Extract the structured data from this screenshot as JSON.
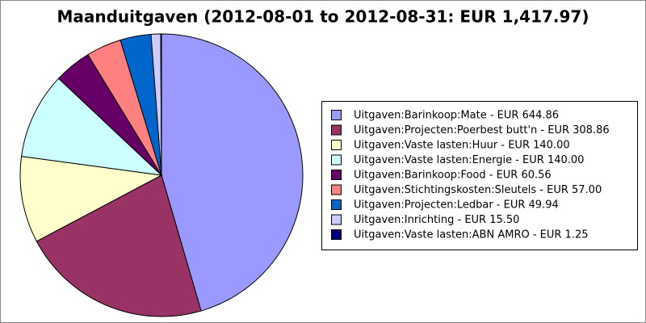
{
  "chart_data": {
    "type": "pie",
    "title": "Maanduitgaven (2012-08-01 to 2012-08-31: EUR 1,417.97)",
    "categories": [
      "Uitgaven:Barinkoop:Mate - EUR 644.86",
      "Uitgaven:Projecten:Poerbest butt'n - EUR 308.86",
      "Uitgaven:Vaste lasten:Huur - EUR 140.00",
      "Uitgaven:Vaste lasten:Energie - EUR 140.00",
      "Uitgaven:Barinkoop:Food - EUR 60.56",
      "Uitgaven:Stichtingskosten:Sleutels - EUR 57.00",
      "Uitgaven:Projecten:Ledbar - EUR 49.94",
      "Uitgaven:Inrichting - EUR 15.50",
      "Uitgaven:Vaste lasten:ABN AMRO - EUR 1.25"
    ],
    "values": [
      644.86,
      308.86,
      140.0,
      140.0,
      60.56,
      57.0,
      49.94,
      15.5,
      1.25
    ],
    "colors": [
      "#9999ff",
      "#993366",
      "#ffffcc",
      "#ccffff",
      "#660066",
      "#ff8080",
      "#0066cc",
      "#ccccff",
      "#000080"
    ]
  }
}
